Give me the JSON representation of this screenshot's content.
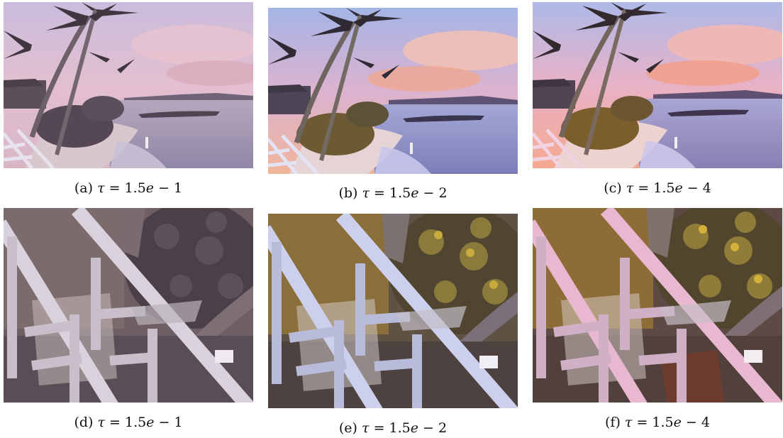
{
  "figure": {
    "panels": [
      {
        "label": "(a)",
        "tau": "1.5",
        "exp": "1",
        "variant": "beach-scene",
        "tone": "muted-pink"
      },
      {
        "label": "(b)",
        "tau": "1.5",
        "exp": "2",
        "variant": "beach-scene",
        "tone": "vivid"
      },
      {
        "label": "(c)",
        "tau": "1.5",
        "exp": "4",
        "variant": "beach-scene",
        "tone": "warm"
      },
      {
        "label": "(d)",
        "tau": "1.5",
        "exp": "1",
        "variant": "stair-crop",
        "tone": "muted-pink"
      },
      {
        "label": "(e)",
        "tau": "1.5",
        "exp": "2",
        "variant": "stair-crop",
        "tone": "vivid"
      },
      {
        "label": "(f)",
        "tau": "1.5",
        "exp": "4",
        "variant": "stair-crop",
        "tone": "warm"
      }
    ]
  }
}
